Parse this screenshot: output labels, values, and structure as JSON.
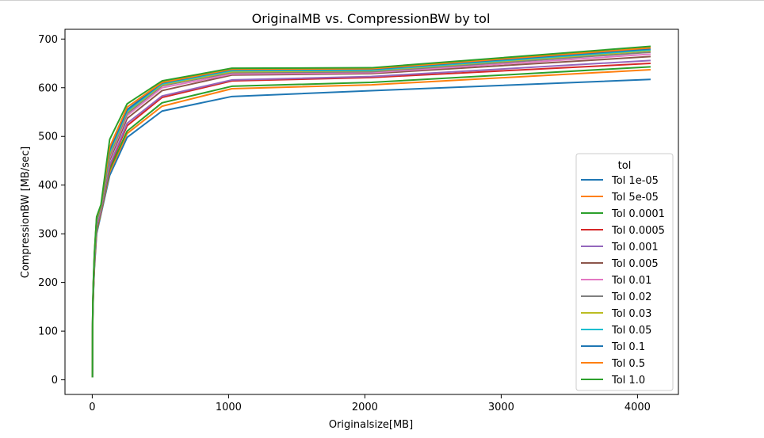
{
  "chart_data": {
    "type": "line",
    "title": "OriginalMB vs. CompressionBW by tol",
    "xlabel": "Originalsize[MB]",
    "ylabel": "CompressionBW [MB/sec]",
    "xlim": [
      -200,
      4300
    ],
    "ylim": [
      -30,
      720
    ],
    "xticks": [
      0,
      1000,
      2000,
      3000,
      4000
    ],
    "yticks": [
      0,
      100,
      200,
      300,
      400,
      500,
      600,
      700
    ],
    "grid": false,
    "legend": {
      "title": "tol",
      "position": "center-right"
    },
    "x": [
      1,
      2,
      4,
      8,
      16,
      32,
      64,
      128,
      256,
      512,
      1024,
      2048,
      4096
    ],
    "series": [
      {
        "name": "Tol 1e-05",
        "color": "#1f77b4",
        "values": [
          5,
          75,
          130,
          175,
          230,
          300,
          340,
          420,
          498,
          552,
          582,
          594,
          617
        ]
      },
      {
        "name": "Tol 5e-05",
        "color": "#ff7f0e",
        "values": [
          5,
          77,
          133,
          178,
          234,
          305,
          343,
          427,
          506,
          562,
          598,
          606,
          637
        ]
      },
      {
        "name": "Tol 0.0001",
        "color": "#2ca02c",
        "values": [
          5,
          78,
          135,
          180,
          236,
          308,
          345,
          432,
          511,
          569,
          603,
          611,
          643
        ]
      },
      {
        "name": "Tol 0.0005",
        "color": "#d62728",
        "values": [
          5,
          79,
          137,
          182,
          239,
          312,
          346,
          438,
          522,
          580,
          614,
          621,
          650
        ]
      },
      {
        "name": "Tol 0.001",
        "color": "#9467bd",
        "values": [
          5,
          80,
          138,
          184,
          241,
          314,
          347,
          441,
          527,
          583,
          616,
          623,
          656
        ]
      },
      {
        "name": "Tol 0.005",
        "color": "#8c564b",
        "values": [
          5,
          82,
          142,
          188,
          246,
          320,
          350,
          451,
          537,
          594,
          626,
          629,
          664
        ]
      },
      {
        "name": "Tol 0.01",
        "color": "#e377c2",
        "values": [
          5,
          83,
          144,
          190,
          248,
          322,
          352,
          456,
          543,
          600,
          628,
          631,
          669
        ]
      },
      {
        "name": "Tol 0.02",
        "color": "#7f7f7f",
        "values": [
          5,
          84,
          146,
          192,
          250,
          325,
          354,
          460,
          547,
          604,
          631,
          633,
          673
        ]
      },
      {
        "name": "Tol 0.03",
        "color": "#bcbd22",
        "values": [
          5,
          85,
          147,
          193,
          252,
          326,
          355,
          464,
          550,
          606,
          633,
          635,
          676
        ]
      },
      {
        "name": "Tol 0.05",
        "color": "#17becf",
        "values": [
          5,
          86,
          148,
          195,
          254,
          328,
          356,
          468,
          552,
          608,
          635,
          636,
          678
        ]
      },
      {
        "name": "Tol 0.1",
        "color": "#1f77b4",
        "values": [
          5,
          87,
          150,
          197,
          256,
          330,
          357,
          472,
          555,
          610,
          637,
          638,
          680
        ]
      },
      {
        "name": "Tol 0.5",
        "color": "#ff7f0e",
        "values": [
          5,
          88,
          152,
          199,
          259,
          332,
          358,
          478,
          560,
          611,
          638,
          639,
          682
        ]
      },
      {
        "name": "Tol 1.0",
        "color": "#2ca02c",
        "values": [
          5,
          90,
          155,
          202,
          262,
          335,
          360,
          494,
          567,
          614,
          640,
          641,
          685
        ]
      }
    ]
  }
}
